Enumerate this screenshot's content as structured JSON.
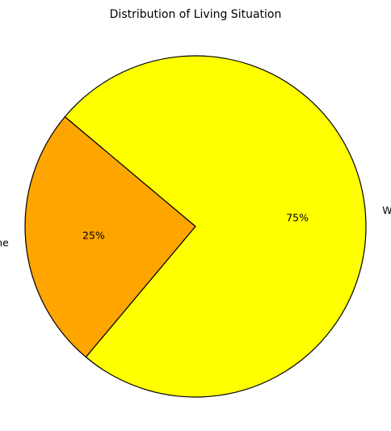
{
  "chart_data": {
    "type": "pie",
    "title": "Distribution of Living Situation",
    "slices": [
      {
        "label": "Alone",
        "value": 25,
        "pct_label": "25%",
        "color": "#FFA500"
      },
      {
        "label": "With Family",
        "value": 75,
        "pct_label": "75%",
        "color": "#FFFF00"
      }
    ],
    "start_angle_deg": 140,
    "direction": "counterclockwise",
    "edge_color": "#000000",
    "legend": "none"
  }
}
